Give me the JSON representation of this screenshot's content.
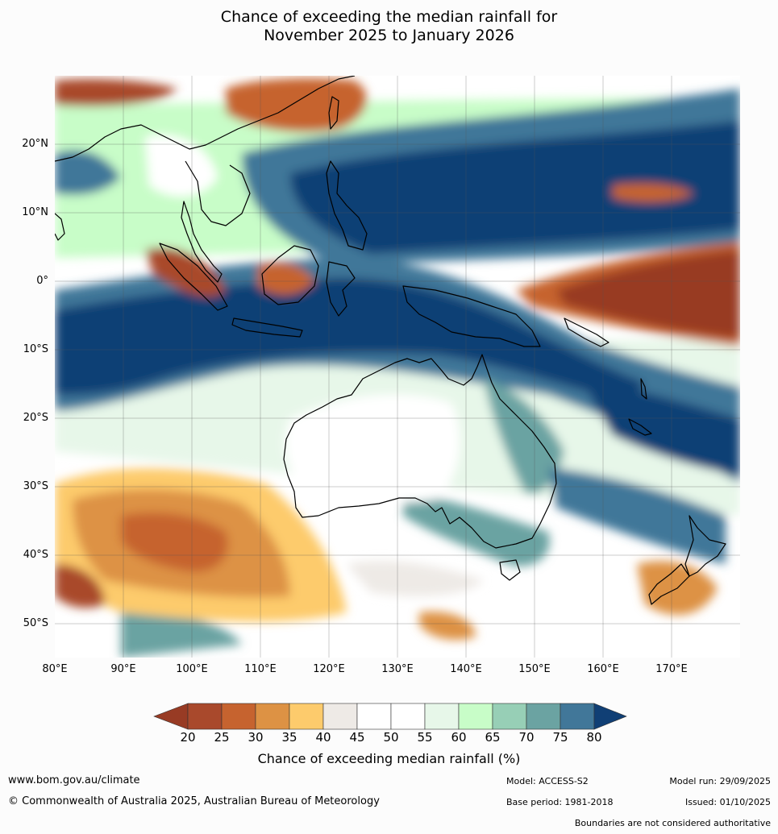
{
  "title_lines": [
    "Chance of exceeding the median rainfall for",
    "November 2025 to January 2026"
  ],
  "map": {
    "lon_range": [
      80,
      180
    ],
    "lat_range": [
      -55,
      30
    ],
    "lat_labels": [
      "20°N",
      "10°N",
      "0°",
      "10°S",
      "20°S",
      "30°S",
      "40°S",
      "50°S"
    ],
    "lon_labels": [
      "80°E",
      "90°E",
      "100°E",
      "110°E",
      "120°E",
      "130°E",
      "140°E",
      "150°E",
      "160°E",
      "170°E"
    ],
    "legend_colors": [
      "#983b24",
      "#a9492c",
      "#c6632f",
      "#dd9244",
      "#fdcb6c",
      "#eeeae6",
      "#ffffff",
      "#ffffff",
      "#e7f7e9",
      "#c8fdc8",
      "#97cfb6",
      "#6ba3a2",
      "#417799",
      "#103f75"
    ],
    "regions": [
      {
        "name": "wet-indonesia-band",
        "color": "#103f75"
      },
      {
        "name": "dry-equatorial-pacific",
        "color": "#983b24"
      },
      {
        "name": "dry-southern-indian-ocean",
        "color": "#dd9244"
      },
      {
        "name": "dry-south-china-sea",
        "color": "#c6632f"
      }
    ]
  },
  "colorbar": {
    "ticks": [
      "20",
      "25",
      "30",
      "35",
      "40",
      "45",
      "50",
      "55",
      "60",
      "65",
      "70",
      "75",
      "80"
    ],
    "title": "Chance of exceeding median rainfall (%)"
  },
  "footer": {
    "website": "www.bom.gov.au/climate",
    "copyright": "© Commonwealth of Australia 2025, Australian Bureau of Meteorology",
    "model": "Model: ACCESS-S2",
    "base_period": "Base period: 1981-2018",
    "model_run": "Model run: 29/09/2025",
    "issued": "Issued: 01/10/2025",
    "disclaimer": "Boundaries are not considered authoritative"
  }
}
